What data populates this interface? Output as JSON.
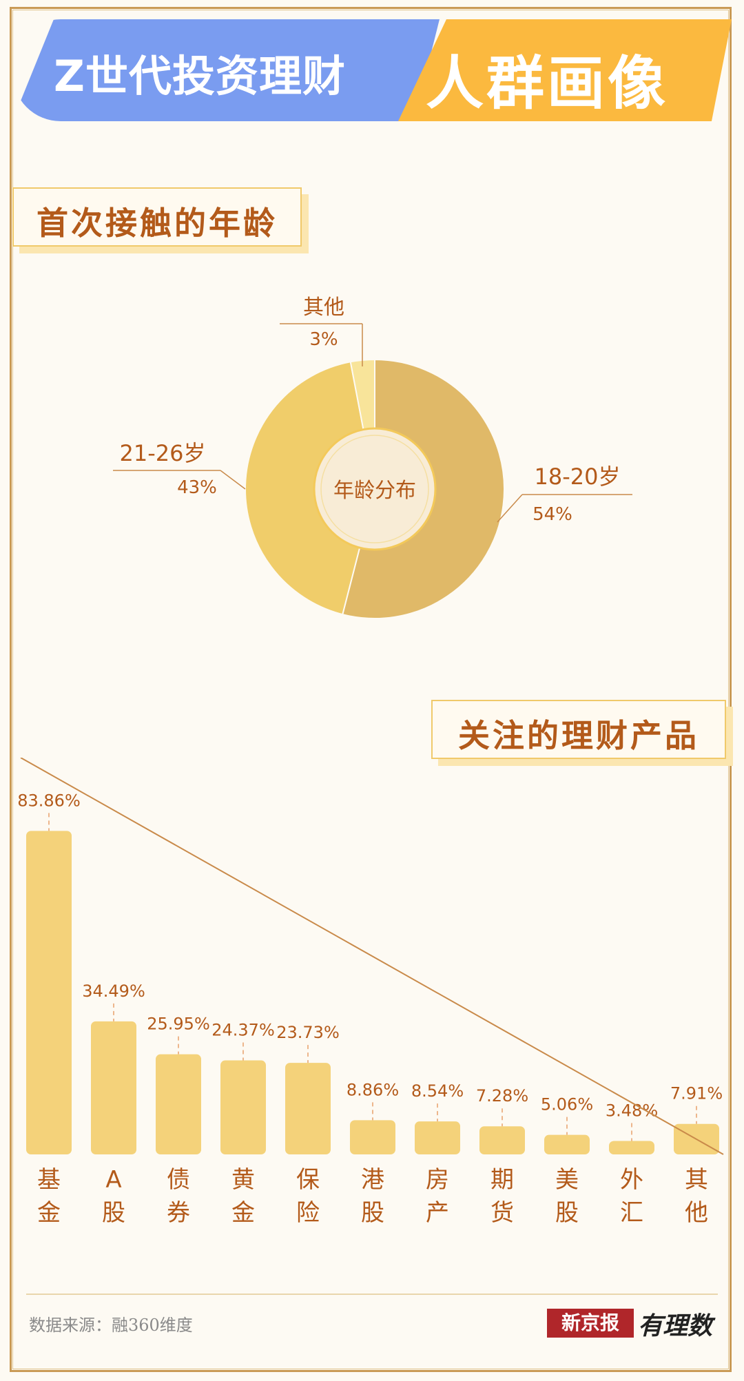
{
  "header": {
    "title_left": "Z世代投资理财",
    "title_right": "人群画像"
  },
  "sections": {
    "age_title": "首次接触的年龄",
    "products_title": "关注的理财产品"
  },
  "colors": {
    "accent_blue": "#7a9cf0",
    "accent_orange": "#fbb93f",
    "label_brown": "#b35a1a",
    "bar_fill": "#f4d27a",
    "donut_18_20": "#e0b968",
    "donut_21_26": "#f0cd6a",
    "donut_other": "#f8e49a"
  },
  "chart_data": [
    {
      "type": "pie",
      "title": "年龄分布",
      "slices": [
        {
          "label": "18-20岁",
          "value": 54,
          "value_label": "54%"
        },
        {
          "label": "21-26岁",
          "value": 43,
          "value_label": "43%"
        },
        {
          "label": "其他",
          "value": 3,
          "value_label": "3%"
        }
      ]
    },
    {
      "type": "bar",
      "categories": [
        "基金",
        "A股",
        "债券",
        "黄金",
        "保险",
        "港股",
        "房产",
        "期货",
        "美股",
        "外汇",
        "其他"
      ],
      "values": [
        83.86,
        34.49,
        25.95,
        24.37,
        23.73,
        8.86,
        8.54,
        7.28,
        5.06,
        3.48,
        7.91
      ],
      "value_labels": [
        "83.86%",
        "34.49%",
        "25.95%",
        "24.37%",
        "23.73%",
        "8.86%",
        "8.54%",
        "7.28%",
        "5.06%",
        "3.48%",
        "7.91%"
      ],
      "ylim": [
        0,
        100
      ]
    }
  ],
  "footer": {
    "source": "数据来源：融360维度",
    "brand": "新京报",
    "brand_sub": "有理数"
  }
}
